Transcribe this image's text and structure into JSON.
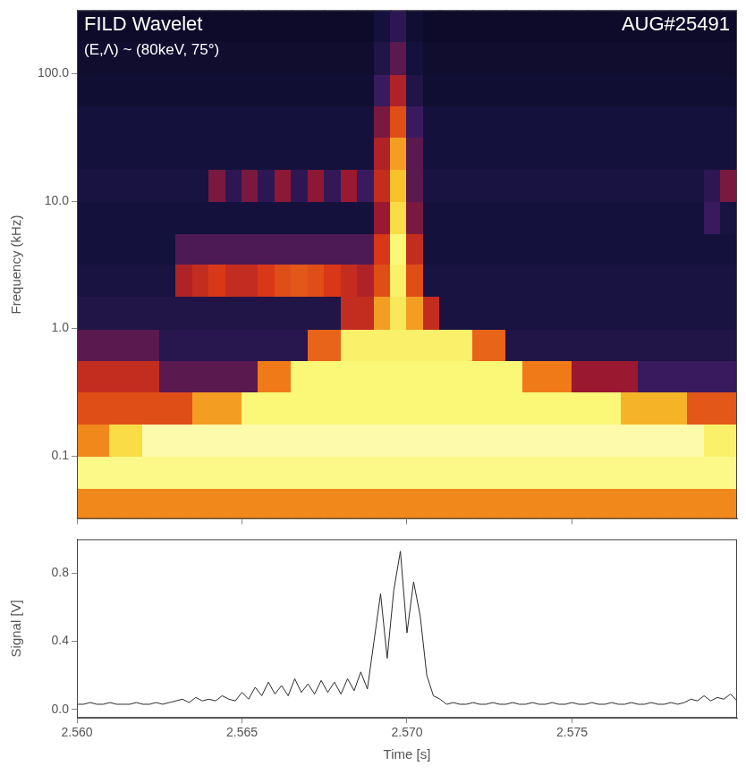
{
  "chart_data": [
    {
      "type": "heatmap",
      "title": "FILD Wavelet",
      "subtitle": "(E,Λ) ~ (80keV, 75°)",
      "annotations": [
        "AUG#25491"
      ],
      "y_label": "Frequency (kHz)",
      "log": "y",
      "grid": false,
      "tick_labels": "y",
      "xlim": [
        2.56,
        2.58
      ],
      "xticks": [
        {
          "value": 2.56,
          "label": "2.560"
        },
        {
          "value": 2.565,
          "label": "2.565"
        },
        {
          "value": 2.57,
          "label": "2.570"
        },
        {
          "value": 2.575,
          "label": "2.575"
        }
      ],
      "ylim": [
        0.032,
        316
      ],
      "yticks": [
        0.1,
        {
          "value": 1,
          "label": "1.0"
        },
        {
          "value": 10,
          "label": "10.0"
        },
        {
          "value": 100,
          "label": "100.0"
        }
      ],
      "zlim": [
        0,
        1
      ],
      "time_bins": [
        2.56,
        2.5605,
        2.561,
        2.5615,
        2.562,
        2.5625,
        2.563,
        2.5635,
        2.564,
        2.5645,
        2.565,
        2.5655,
        2.566,
        2.5665,
        2.567,
        2.5675,
        2.568,
        2.5685,
        2.569,
        2.5695,
        2.57,
        2.5705,
        2.571,
        2.5715,
        2.572,
        2.5725,
        2.573,
        2.5735,
        2.574,
        2.5745,
        2.575,
        2.5755,
        2.576,
        2.5765,
        2.577,
        2.5775,
        2.578,
        2.5785,
        2.579,
        2.5795,
        2.58
      ],
      "freq_bins": [
        0.032,
        0.056,
        0.1,
        0.18,
        0.32,
        0.56,
        1,
        1.8,
        3.2,
        5.6,
        10,
        18,
        32,
        56,
        100,
        180,
        316
      ],
      "cells": [
        [
          0.72,
          0.72,
          0.72,
          0.72,
          0.72,
          0.72,
          0.72,
          0.72,
          0.72,
          0.72,
          0.72,
          0.72,
          0.72,
          0.72,
          0.72,
          0.72,
          0.72,
          0.72,
          0.72,
          0.72,
          0.72,
          0.72,
          0.72,
          0.72,
          0.72,
          0.72,
          0.72,
          0.72,
          0.72,
          0.72,
          0.72,
          0.72,
          0.72,
          0.72,
          0.72,
          0.72,
          0.72,
          0.72,
          0.72,
          0.72
        ],
        [
          0.93,
          0.93,
          0.93,
          0.93,
          0.93,
          0.93,
          0.93,
          0.93,
          0.93,
          0.93,
          0.93,
          0.93,
          0.93,
          0.93,
          0.93,
          0.93,
          0.93,
          0.93,
          0.93,
          0.93,
          0.93,
          0.93,
          0.93,
          0.93,
          0.93,
          0.93,
          0.93,
          0.93,
          0.93,
          0.93,
          0.93,
          0.93,
          0.93,
          0.93,
          0.93,
          0.93,
          0.93,
          0.93,
          0.93,
          0.93
        ],
        [
          0.72,
          0.72,
          0.85,
          0.85,
          0.95,
          0.95,
          0.95,
          0.95,
          0.95,
          0.95,
          0.95,
          0.95,
          0.95,
          0.95,
          0.95,
          0.95,
          0.95,
          0.95,
          0.95,
          0.95,
          0.95,
          0.95,
          0.95,
          0.95,
          0.95,
          0.95,
          0.95,
          0.95,
          0.95,
          0.95,
          0.95,
          0.95,
          0.95,
          0.95,
          0.95,
          0.95,
          0.95,
          0.95,
          0.9,
          0.9
        ],
        [
          0.6,
          0.6,
          0.6,
          0.6,
          0.6,
          0.6,
          0.6,
          0.75,
          0.75,
          0.75,
          0.92,
          0.92,
          0.92,
          0.92,
          0.92,
          0.92,
          0.92,
          0.92,
          0.92,
          0.92,
          0.92,
          0.92,
          0.92,
          0.92,
          0.92,
          0.92,
          0.92,
          0.92,
          0.92,
          0.92,
          0.92,
          0.92,
          0.92,
          0.78,
          0.78,
          0.78,
          0.78,
          0.62,
          0.62,
          0.62
        ],
        [
          0.5,
          0.5,
          0.5,
          0.5,
          0.5,
          0.3,
          0.3,
          0.3,
          0.3,
          0.3,
          0.3,
          0.7,
          0.7,
          0.92,
          0.92,
          0.92,
          0.92,
          0.92,
          0.92,
          0.92,
          0.92,
          0.92,
          0.92,
          0.92,
          0.92,
          0.92,
          0.92,
          0.7,
          0.7,
          0.7,
          0.4,
          0.4,
          0.4,
          0.4,
          0.25,
          0.25,
          0.25,
          0.25,
          0.25,
          0.25
        ],
        [
          0.3,
          0.3,
          0.3,
          0.3,
          0.3,
          0.18,
          0.18,
          0.18,
          0.18,
          0.18,
          0.18,
          0.18,
          0.18,
          0.18,
          0.65,
          0.65,
          0.9,
          0.9,
          0.9,
          0.9,
          0.9,
          0.9,
          0.9,
          0.9,
          0.65,
          0.65,
          0.15,
          0.15,
          0.15,
          0.15,
          0.15,
          0.15,
          0.15,
          0.15,
          0.15,
          0.15,
          0.15,
          0.15,
          0.15,
          0.15
        ],
        [
          0.15,
          0.15,
          0.15,
          0.15,
          0.15,
          0.15,
          0.15,
          0.15,
          0.15,
          0.15,
          0.15,
          0.15,
          0.15,
          0.15,
          0.15,
          0.15,
          0.5,
          0.5,
          0.75,
          0.88,
          0.75,
          0.5,
          0.12,
          0.12,
          0.12,
          0.12,
          0.12,
          0.12,
          0.12,
          0.12,
          0.12,
          0.12,
          0.12,
          0.12,
          0.12,
          0.12,
          0.12,
          0.12,
          0.12,
          0.12
        ],
        [
          0.12,
          0.12,
          0.12,
          0.12,
          0.12,
          0.12,
          0.45,
          0.5,
          0.55,
          0.5,
          0.5,
          0.55,
          0.6,
          0.62,
          0.6,
          0.55,
          0.5,
          0.45,
          0.6,
          0.9,
          0.6,
          0.12,
          0.12,
          0.12,
          0.12,
          0.12,
          0.12,
          0.12,
          0.12,
          0.12,
          0.12,
          0.12,
          0.12,
          0.12,
          0.12,
          0.12,
          0.12,
          0.12,
          0.12,
          0.12
        ],
        [
          0.1,
          0.1,
          0.1,
          0.1,
          0.1,
          0.1,
          0.28,
          0.28,
          0.28,
          0.28,
          0.28,
          0.28,
          0.28,
          0.28,
          0.28,
          0.28,
          0.28,
          0.28,
          0.55,
          0.92,
          0.5,
          0.1,
          0.1,
          0.1,
          0.1,
          0.1,
          0.1,
          0.1,
          0.1,
          0.1,
          0.1,
          0.1,
          0.1,
          0.1,
          0.1,
          0.1,
          0.1,
          0.1,
          0.1,
          0.1
        ],
        [
          0.1,
          0.1,
          0.1,
          0.1,
          0.1,
          0.1,
          0.1,
          0.1,
          0.1,
          0.1,
          0.1,
          0.1,
          0.1,
          0.1,
          0.1,
          0.1,
          0.1,
          0.1,
          0.4,
          0.85,
          0.35,
          0.1,
          0.1,
          0.1,
          0.1,
          0.1,
          0.1,
          0.1,
          0.1,
          0.1,
          0.1,
          0.1,
          0.1,
          0.1,
          0.1,
          0.1,
          0.1,
          0.1,
          0.25,
          0.12
        ],
        [
          0.12,
          0.12,
          0.12,
          0.12,
          0.12,
          0.12,
          0.12,
          0.12,
          0.35,
          0.2,
          0.35,
          0.2,
          0.38,
          0.2,
          0.38,
          0.22,
          0.4,
          0.25,
          0.5,
          0.8,
          0.3,
          0.12,
          0.12,
          0.12,
          0.12,
          0.12,
          0.12,
          0.12,
          0.12,
          0.12,
          0.12,
          0.12,
          0.12,
          0.12,
          0.12,
          0.12,
          0.12,
          0.12,
          0.2,
          0.35
        ],
        [
          0.1,
          0.1,
          0.1,
          0.1,
          0.1,
          0.1,
          0.1,
          0.1,
          0.1,
          0.1,
          0.1,
          0.1,
          0.1,
          0.1,
          0.1,
          0.1,
          0.1,
          0.1,
          0.45,
          0.75,
          0.3,
          0.1,
          0.1,
          0.1,
          0.1,
          0.1,
          0.1,
          0.1,
          0.1,
          0.1,
          0.1,
          0.1,
          0.1,
          0.1,
          0.1,
          0.1,
          0.1,
          0.1,
          0.1,
          0.1
        ],
        [
          0.1,
          0.1,
          0.1,
          0.1,
          0.1,
          0.1,
          0.1,
          0.1,
          0.1,
          0.1,
          0.1,
          0.1,
          0.1,
          0.1,
          0.1,
          0.1,
          0.1,
          0.1,
          0.35,
          0.6,
          0.25,
          0.1,
          0.1,
          0.1,
          0.1,
          0.1,
          0.1,
          0.1,
          0.1,
          0.1,
          0.1,
          0.1,
          0.1,
          0.1,
          0.1,
          0.1,
          0.1,
          0.1,
          0.1,
          0.1
        ],
        [
          0.08,
          0.08,
          0.08,
          0.08,
          0.08,
          0.08,
          0.08,
          0.08,
          0.08,
          0.08,
          0.08,
          0.08,
          0.08,
          0.08,
          0.08,
          0.08,
          0.08,
          0.08,
          0.25,
          0.45,
          0.15,
          0.08,
          0.08,
          0.08,
          0.08,
          0.08,
          0.08,
          0.08,
          0.08,
          0.08,
          0.08,
          0.08,
          0.08,
          0.08,
          0.08,
          0.08,
          0.08,
          0.08,
          0.08,
          0.08
        ],
        [
          0.07,
          0.07,
          0.07,
          0.07,
          0.07,
          0.07,
          0.07,
          0.07,
          0.07,
          0.07,
          0.07,
          0.07,
          0.07,
          0.07,
          0.07,
          0.07,
          0.07,
          0.07,
          0.15,
          0.3,
          0.1,
          0.07,
          0.07,
          0.07,
          0.07,
          0.07,
          0.07,
          0.07,
          0.07,
          0.07,
          0.07,
          0.07,
          0.07,
          0.07,
          0.07,
          0.07,
          0.07,
          0.07,
          0.07,
          0.07
        ],
        [
          0.06,
          0.06,
          0.06,
          0.06,
          0.06,
          0.06,
          0.06,
          0.06,
          0.06,
          0.06,
          0.06,
          0.06,
          0.06,
          0.06,
          0.06,
          0.06,
          0.06,
          0.06,
          0.1,
          0.2,
          0.08,
          0.06,
          0.06,
          0.06,
          0.06,
          0.06,
          0.06,
          0.06,
          0.06,
          0.06,
          0.06,
          0.06,
          0.06,
          0.06,
          0.06,
          0.06,
          0.06,
          0.06,
          0.06,
          0.06
        ]
      ]
    },
    {
      "type": "line",
      "x_label": "Time [s]",
      "y_label": "Signal [V]",
      "grid": false,
      "color": "#2b2b2b",
      "xlim": [
        2.56,
        2.58
      ],
      "xticks": [
        {
          "value": 2.56,
          "label": "2.560"
        },
        {
          "value": 2.565,
          "label": "2.565"
        },
        {
          "value": 2.57,
          "label": "2.570"
        },
        {
          "value": 2.575,
          "label": "2.575"
        }
      ],
      "ylim": [
        -0.05,
        1.0
      ],
      "yticks": [
        {
          "value": 0,
          "label": "0.0"
        },
        0.4,
        0.8
      ],
      "x": [
        2.56,
        2.5602,
        2.5604,
        2.5606,
        2.5608,
        2.561,
        2.5612,
        2.5614,
        2.5616,
        2.5618,
        2.562,
        2.5622,
        2.5624,
        2.5626,
        2.5628,
        2.563,
        2.5632,
        2.5634,
        2.5636,
        2.5638,
        2.564,
        2.5642,
        2.5644,
        2.5646,
        2.5648,
        2.565,
        2.5652,
        2.5654,
        2.5656,
        2.5658,
        2.566,
        2.5662,
        2.5664,
        2.5666,
        2.5668,
        2.567,
        2.5672,
        2.5674,
        2.5676,
        2.5678,
        2.568,
        2.5682,
        2.5684,
        2.5686,
        2.5688,
        2.569,
        2.5692,
        2.5694,
        2.5696,
        2.5698,
        2.57,
        2.5702,
        2.5704,
        2.5706,
        2.5708,
        2.571,
        2.5712,
        2.5714,
        2.5716,
        2.5718,
        2.572,
        2.5722,
        2.5724,
        2.5726,
        2.5728,
        2.573,
        2.5732,
        2.5734,
        2.5736,
        2.5738,
        2.574,
        2.5742,
        2.5744,
        2.5746,
        2.5748,
        2.575,
        2.5752,
        2.5754,
        2.5756,
        2.5758,
        2.576,
        2.5762,
        2.5764,
        2.5766,
        2.5768,
        2.577,
        2.5772,
        2.5774,
        2.5776,
        2.5778,
        2.578,
        2.5782,
        2.5784,
        2.5786,
        2.5788,
        2.579,
        2.5792,
        2.5794,
        2.5796,
        2.5798,
        2.58
      ],
      "values": [
        0.03,
        0.03,
        0.04,
        0.03,
        0.03,
        0.04,
        0.03,
        0.03,
        0.03,
        0.04,
        0.03,
        0.03,
        0.04,
        0.03,
        0.04,
        0.05,
        0.06,
        0.04,
        0.07,
        0.05,
        0.06,
        0.05,
        0.08,
        0.06,
        0.05,
        0.1,
        0.06,
        0.13,
        0.08,
        0.16,
        0.09,
        0.14,
        0.08,
        0.18,
        0.1,
        0.15,
        0.09,
        0.17,
        0.1,
        0.16,
        0.09,
        0.18,
        0.11,
        0.22,
        0.12,
        0.4,
        0.68,
        0.3,
        0.7,
        0.93,
        0.45,
        0.75,
        0.55,
        0.2,
        0.08,
        0.06,
        0.03,
        0.04,
        0.03,
        0.03,
        0.04,
        0.03,
        0.03,
        0.04,
        0.03,
        0.03,
        0.04,
        0.03,
        0.03,
        0.04,
        0.03,
        0.03,
        0.04,
        0.03,
        0.03,
        0.04,
        0.03,
        0.03,
        0.04,
        0.03,
        0.03,
        0.04,
        0.03,
        0.03,
        0.04,
        0.03,
        0.03,
        0.04,
        0.03,
        0.03,
        0.04,
        0.03,
        0.04,
        0.06,
        0.05,
        0.08,
        0.05,
        0.07,
        0.06,
        0.09,
        0.05
      ]
    }
  ]
}
